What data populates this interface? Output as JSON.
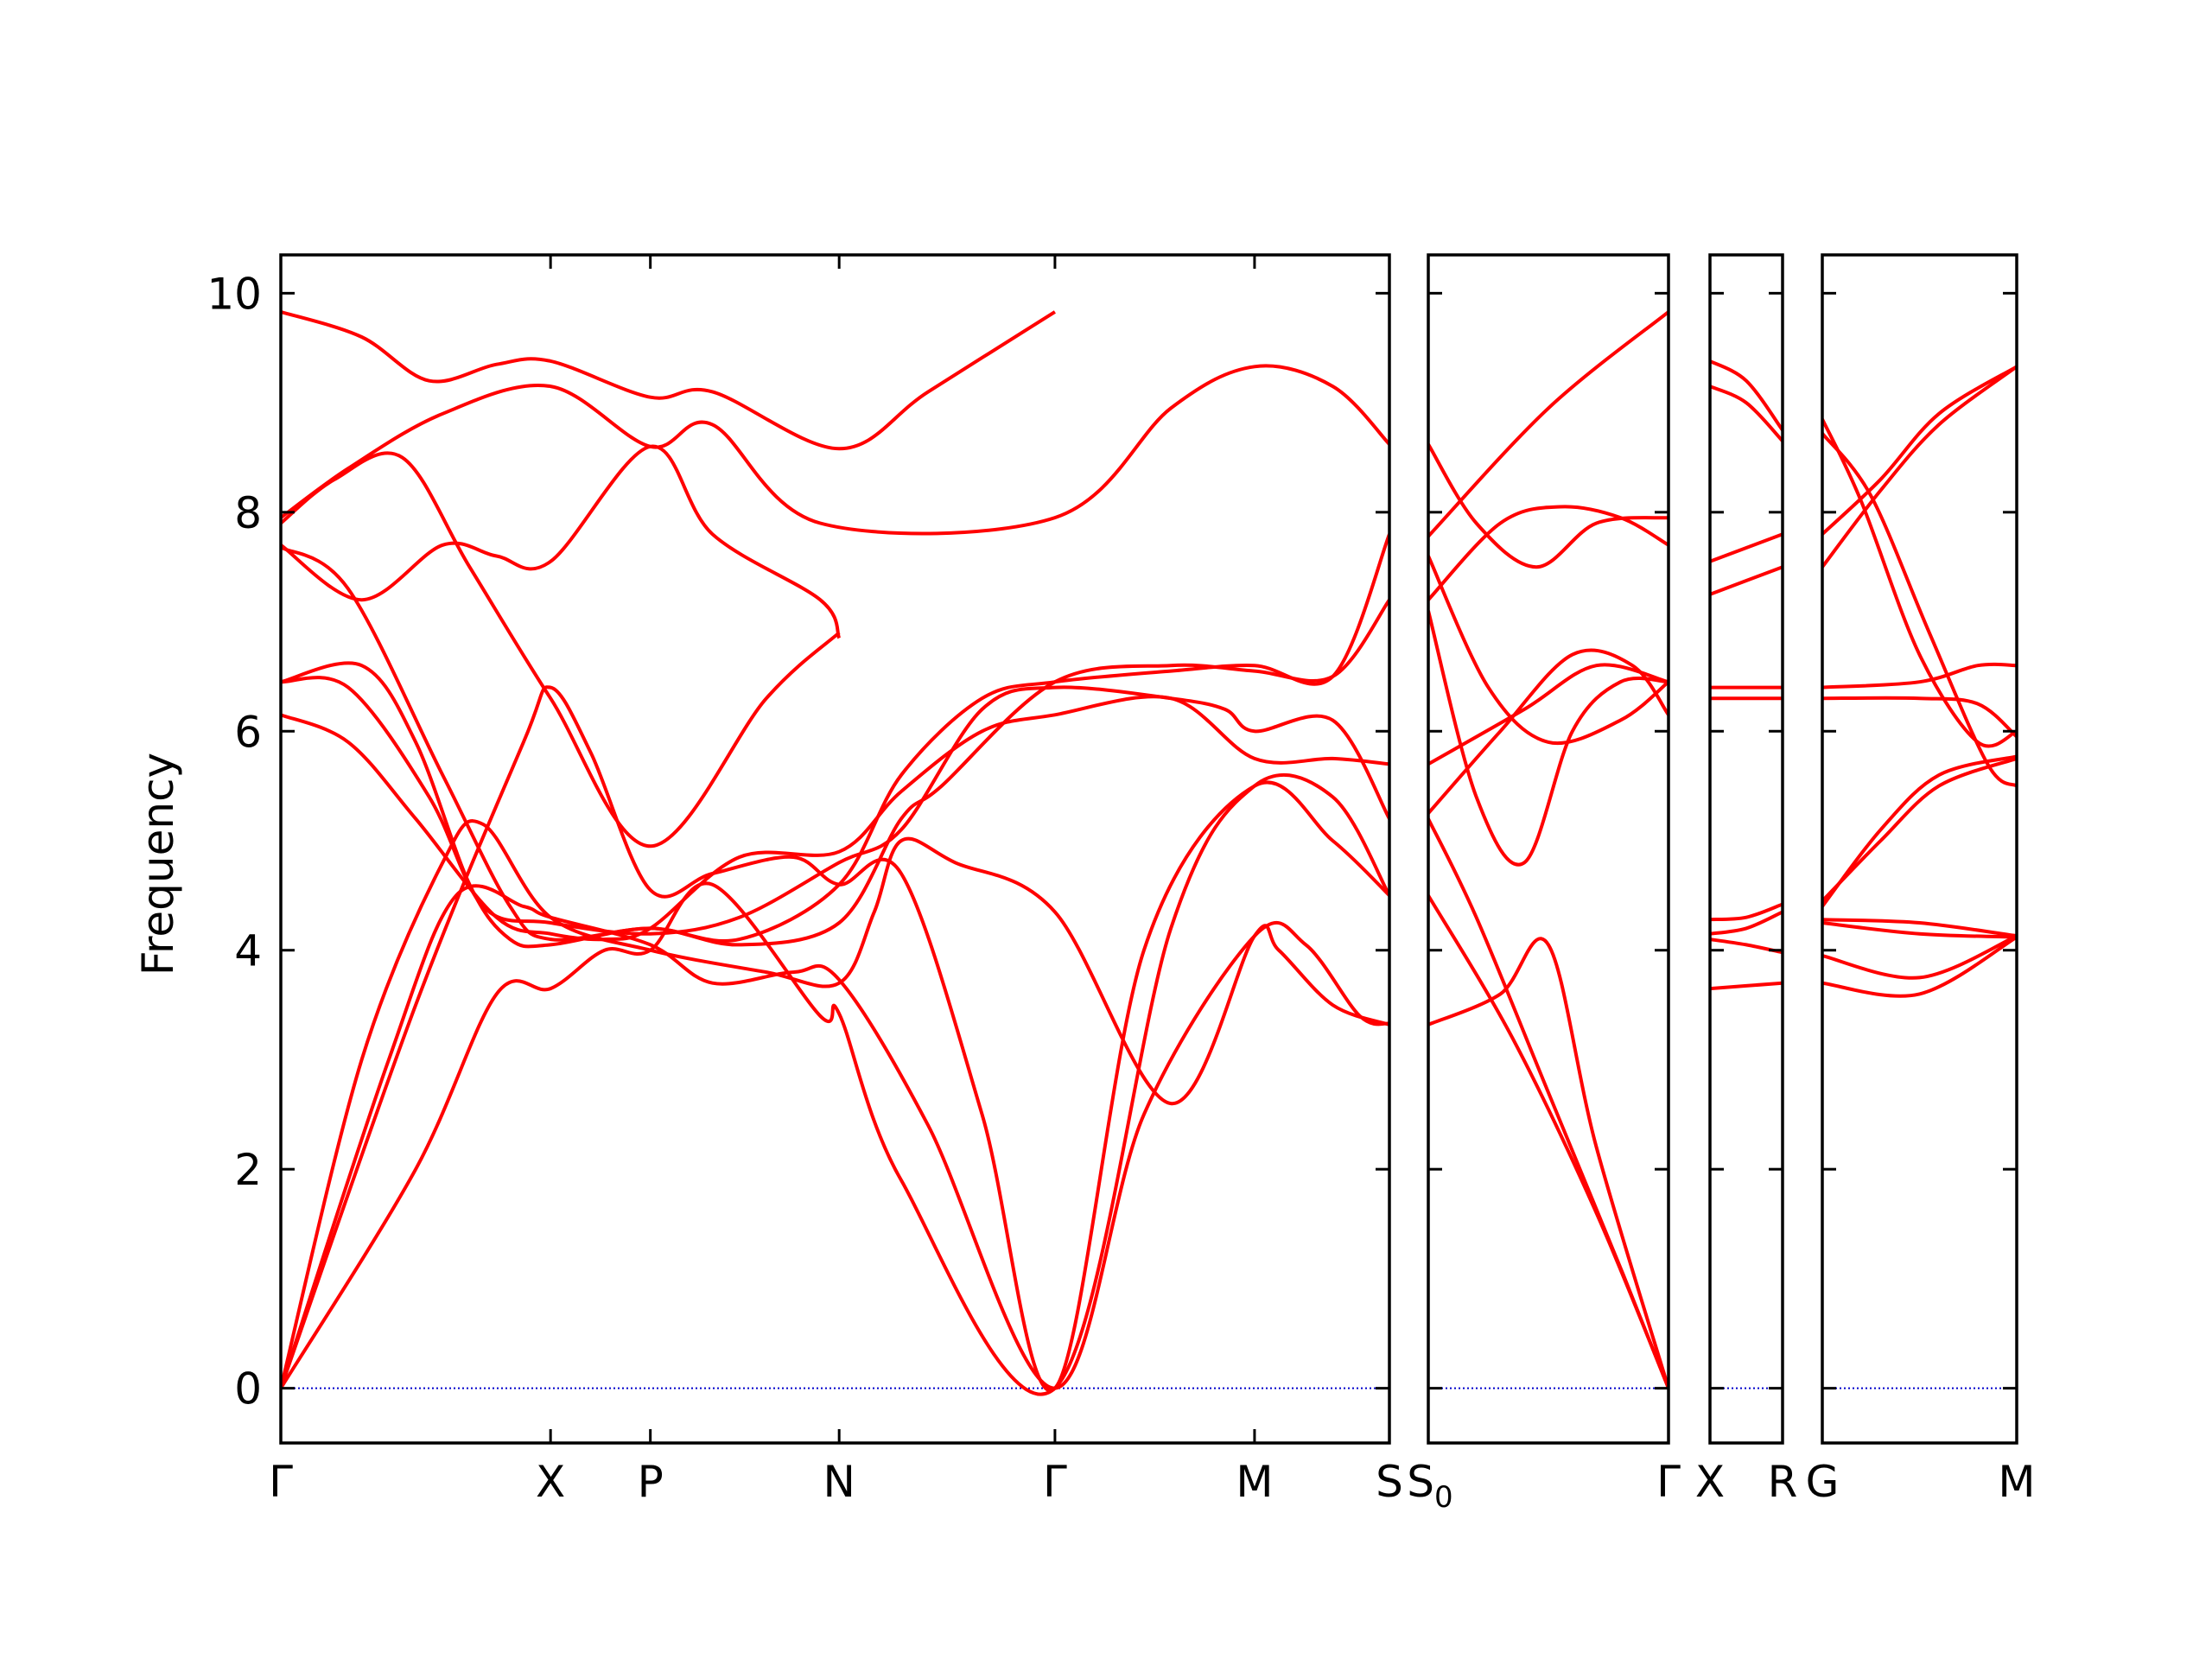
{
  "chart_data": {
    "type": "line",
    "title": "",
    "ylabel": "Frequency",
    "xlabel": "",
    "ylim": [
      -0.5,
      10.35
    ],
    "grid": false,
    "legend": "none",
    "colors": {
      "bands": "#ff0000",
      "zero_line": "#0000cc",
      "axes": "#000000"
    },
    "yticks": [
      "0",
      "2",
      "4",
      "6",
      "8",
      "10"
    ],
    "panels": [
      {
        "ticks": [
          {
            "pos": 0,
            "label": "Γ"
          },
          {
            "pos": 1.0,
            "label": "X"
          },
          {
            "pos": 1.37,
            "label": "P"
          },
          {
            "pos": 2.07,
            "label": "N"
          },
          {
            "pos": 2.87,
            "label": "Γ"
          },
          {
            "pos": 3.61,
            "label": "M"
          },
          {
            "pos": 4.11,
            "label": "S"
          }
        ],
        "series": [
          {
            "x": [
              0,
              0.3,
              0.55,
              0.8,
              1.0,
              1.37,
              1.6,
              2.07,
              2.4,
              2.87
            ],
            "y": [
              9.83,
              9.6,
              9.2,
              9.35,
              9.38,
              9.05,
              9.1,
              8.58,
              9.1,
              9.83
            ]
          },
          {
            "x": [
              0,
              0.25,
              0.6,
              1.0,
              1.37,
              1.6,
              2.0,
              2.87,
              3.3,
              3.61,
              3.9,
              4.11
            ],
            "y": [
              7.95,
              8.4,
              8.9,
              9.15,
              8.6,
              8.8,
              7.9,
              7.95,
              8.95,
              9.33,
              9.15,
              8.62
            ]
          },
          {
            "x": [
              0,
              0.2,
              0.45,
              0.7,
              1.0,
              1.37,
              1.8,
              2.07
            ],
            "y": [
              7.9,
              8.3,
              8.5,
              7.5,
              6.3,
              4.95,
              6.3,
              6.9
            ]
          },
          {
            "x": [
              0,
              0.3,
              0.6,
              0.8,
              1.0,
              1.37,
              1.6,
              2.0,
              2.07
            ],
            "y": [
              7.7,
              7.2,
              7.7,
              7.6,
              7.55,
              8.6,
              7.8,
              7.2,
              6.85
            ]
          },
          {
            "x": [
              0,
              0.25,
              0.6,
              0.85,
              1.0,
              1.37,
              1.7,
              2.07,
              2.3,
              2.6,
              2.87,
              3.3,
              3.61,
              3.9,
              4.11
            ],
            "y": [
              7.68,
              7.3,
              5.6,
              4.4,
              4.1,
              4.2,
              4.1,
              4.6,
              5.6,
              6.3,
              6.45,
              6.55,
              6.6,
              6.5,
              7.8
            ]
          },
          {
            "x": [
              0,
              0.3,
              0.5,
              0.7,
              0.85,
              1.0,
              1.37,
              1.7,
              2.07,
              2.3,
              2.45,
              2.87,
              3.3,
              3.61,
              3.9,
              4.11
            ],
            "y": [
              6.45,
              6.6,
              5.9,
              4.6,
              4.1,
              4.05,
              4.2,
              4.05,
              4.25,
              5.2,
              5.5,
              6.45,
              6.6,
              6.55,
              6.5,
              7.2
            ]
          },
          {
            "x": [
              0,
              0.25,
              0.55,
              0.75,
              1.0,
              1.37,
              1.7,
              2.07,
              2.3,
              2.6,
              2.87,
              3.3,
              3.5,
              3.61,
              3.9,
              4.11
            ],
            "y": [
              6.45,
              6.4,
              5.4,
              4.4,
              4.25,
              4.15,
              4.3,
              4.8,
              5.1,
              6.2,
              6.4,
              6.3,
              6.2,
              6.0,
              6.1,
              5.2
            ]
          },
          {
            "x": [
              0,
              0.25,
              0.5,
              0.8,
              1.0,
              1.2,
              1.37,
              1.7,
              2.07,
              2.3,
              2.6,
              2.87,
              3.3,
              3.61,
              3.9,
              4.11
            ],
            "y": [
              6.15,
              5.9,
              5.2,
              4.3,
              4.15,
              4.1,
              4.2,
              4.85,
              4.9,
              5.45,
              6.0,
              6.15,
              6.3,
              5.75,
              5.75,
              5.7
            ]
          },
          {
            "x": [
              0,
              0.3,
              0.6,
              0.75,
              1.0,
              1.37,
              1.8,
              2.07,
              2.2,
              2.3,
              2.5,
              2.87,
              3.3,
              3.61,
              3.7,
              3.9,
              4.11
            ],
            "y": [
              0,
              3.0,
              4.8,
              5.15,
              4.3,
              4.0,
              3.8,
              3.7,
              4.35,
              5.0,
              4.8,
              4.35,
              2.6,
              4.13,
              4.0,
              3.5,
              3.32
            ]
          },
          {
            "x": [
              0,
              0.4,
              0.65,
              0.9,
              1.0,
              1.37,
              1.6,
              1.9,
              2.07,
              2.4,
              2.87,
              3.2,
              3.61,
              3.8,
              4.0,
              4.11
            ],
            "y": [
              0,
              3.0,
              4.5,
              4.4,
              4.3,
              4.05,
              3.7,
              3.8,
              3.73,
              2.4,
              0,
              2.5,
              4.13,
              4.05,
              3.4,
              3.33
            ]
          },
          {
            "x": [
              0,
              0.5,
              0.8,
              1.0,
              1.2,
              1.37,
              1.6,
              2.0,
              2.07,
              2.3,
              2.87,
              3.3,
              3.61,
              3.9,
              4.11
            ],
            "y": [
              0,
              2.0,
              3.6,
              3.65,
              4.0,
              4.0,
              4.6,
              3.4,
              3.42,
              1.9,
              0,
              4.2,
              5.5,
              5.4,
              4.5
            ]
          },
          {
            "x": [
              0,
              0.5,
              0.9,
              1.0,
              1.15,
              1.37,
              1.6,
              1.9,
              2.07,
              2.3,
              2.6,
              2.87,
              3.2,
              3.61,
              3.9,
              4.11
            ],
            "y": [
              0,
              3.5,
              5.9,
              6.4,
              5.8,
              4.55,
              4.7,
              4.85,
              4.6,
              4.7,
              2.5,
              0,
              4.0,
              5.5,
              5.0,
              4.5
            ]
          }
        ]
      },
      {
        "ticks": [
          {
            "pos": 0,
            "label": "S"
          },
          {
            "pos": 1.0,
            "label": "Γ"
          }
        ],
        "sublabel": "0",
        "series": [
          {
            "x": [
              0,
              0.5,
              1.0
            ],
            "y": [
              7.78,
              8.95,
              9.83
            ]
          },
          {
            "x": [
              0,
              0.2,
              0.45,
              0.7,
              1.0
            ],
            "y": [
              8.62,
              7.9,
              7.5,
              7.9,
              7.95
            ]
          },
          {
            "x": [
              0,
              0.3,
              0.55,
              0.8,
              1.0
            ],
            "y": [
              7.2,
              7.9,
              8.05,
              7.95,
              7.7
            ]
          },
          {
            "x": [
              0,
              0.25,
              0.5,
              0.8,
              1.0
            ],
            "y": [
              7.6,
              6.4,
              5.9,
              6.1,
              6.45
            ]
          },
          {
            "x": [
              0,
              0.2,
              0.4,
              0.6,
              0.8,
              1.0
            ],
            "y": [
              7.1,
              5.4,
              4.8,
              6.0,
              6.45,
              6.45
            ]
          },
          {
            "x": [
              0,
              0.4,
              0.7,
              1.0
            ],
            "y": [
              5.7,
              6.2,
              6.6,
              6.45
            ]
          },
          {
            "x": [
              0,
              0.3,
              0.6,
              0.85,
              1.0
            ],
            "y": [
              5.25,
              6.0,
              6.7,
              6.6,
              6.15
            ]
          },
          {
            "x": [
              0,
              0.3,
              0.5,
              0.7,
              1.0
            ],
            "y": [
              3.32,
              3.6,
              4.05,
              2.2,
              0
            ]
          },
          {
            "x": [
              0,
              0.35,
              0.7,
              1.0
            ],
            "y": [
              4.5,
              3.2,
              1.6,
              0
            ]
          },
          {
            "x": [
              0,
              0.2,
              0.5,
              0.8,
              1.0
            ],
            "y": [
              5.2,
              4.3,
              2.7,
              1.1,
              0
            ]
          }
        ]
      },
      {
        "ticks": [
          {
            "pos": 0,
            "label": "X"
          },
          {
            "pos": 1.0,
            "label": "R"
          }
        ],
        "series": [
          {
            "x": [
              0,
              0.5,
              1.0
            ],
            "y": [
              9.38,
              9.2,
              8.75
            ]
          },
          {
            "x": [
              0,
              0.5,
              1.0
            ],
            "y": [
              9.15,
              9.0,
              8.65
            ]
          },
          {
            "x": [
              0,
              1.0
            ],
            "y": [
              7.55,
              7.8
            ]
          },
          {
            "x": [
              0,
              1.0
            ],
            "y": [
              7.25,
              7.5
            ]
          },
          {
            "x": [
              0,
              1.0
            ],
            "y": [
              6.4,
              6.4
            ]
          },
          {
            "x": [
              0,
              1.0
            ],
            "y": [
              6.3,
              6.3
            ]
          },
          {
            "x": [
              0,
              0.5,
              1.0
            ],
            "y": [
              4.28,
              4.3,
              4.42
            ]
          },
          {
            "x": [
              0,
              0.5,
              1.0
            ],
            "y": [
              4.15,
              4.2,
              4.35
            ]
          },
          {
            "x": [
              0,
              0.5,
              1.0
            ],
            "y": [
              4.1,
              4.05,
              3.98
            ]
          },
          {
            "x": [
              0,
              1.0
            ],
            "y": [
              3.65,
              3.7
            ]
          }
        ]
      },
      {
        "ticks": [
          {
            "pos": 0,
            "label": "G"
          },
          {
            "pos": 1.0,
            "label": "M"
          }
        ],
        "series": [
          {
            "x": [
              0,
              0.2,
              0.5,
              0.8,
              1.0
            ],
            "y": [
              8.85,
              8.1,
              6.7,
              5.9,
              6.0
            ]
          },
          {
            "x": [
              0,
              0.25,
              0.55,
              0.85,
              1.0
            ],
            "y": [
              8.72,
              8.15,
              6.9,
              5.7,
              5.5
            ]
          },
          {
            "x": [
              0,
              0.3,
              0.6,
              1.0
            ],
            "y": [
              7.8,
              8.3,
              8.9,
              9.33
            ]
          },
          {
            "x": [
              0,
              0.3,
              0.6,
              1.0
            ],
            "y": [
              7.5,
              8.2,
              8.8,
              9.33
            ]
          },
          {
            "x": [
              0,
              0.5,
              0.8,
              1.0
            ],
            "y": [
              6.4,
              6.45,
              6.6,
              6.6
            ]
          },
          {
            "x": [
              0,
              0.5,
              0.8,
              1.0
            ],
            "y": [
              6.3,
              6.3,
              6.25,
              5.95
            ]
          },
          {
            "x": [
              0,
              0.3,
              0.6,
              1.0
            ],
            "y": [
              4.45,
              5.0,
              5.5,
              5.75
            ]
          },
          {
            "x": [
              0,
              0.3,
              0.6,
              1.0
            ],
            "y": [
              4.4,
              5.1,
              5.6,
              5.77
            ]
          },
          {
            "x": [
              0,
              0.5,
              1.0
            ],
            "y": [
              4.28,
              4.25,
              4.13
            ]
          },
          {
            "x": [
              0,
              0.5,
              1.0
            ],
            "y": [
              4.25,
              4.15,
              4.12
            ]
          },
          {
            "x": [
              0,
              0.5,
              1.0
            ],
            "y": [
              3.95,
              3.75,
              4.13
            ]
          },
          {
            "x": [
              0,
              0.5,
              1.0
            ],
            "y": [
              3.7,
              3.6,
              4.12
            ]
          }
        ]
      }
    ]
  }
}
